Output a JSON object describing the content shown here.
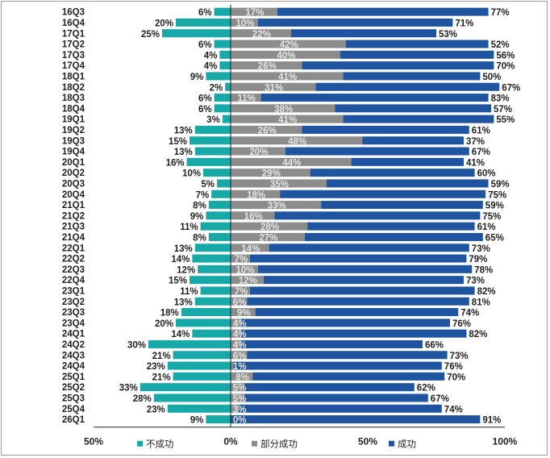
{
  "chart_data": {
    "type": "bar",
    "orientation": "horizontal",
    "stacking": "diverging",
    "categories": [
      "16Q3",
      "16Q4",
      "17Q1",
      "17Q2",
      "17Q3",
      "17Q4",
      "18Q1",
      "18Q2",
      "18Q3",
      "18Q4",
      "19Q1",
      "19Q2",
      "19Q3",
      "19Q4",
      "20Q1",
      "20Q2",
      "20Q3",
      "20Q4",
      "21Q1",
      "21Q2",
      "21Q3",
      "21Q4",
      "22Q1",
      "22Q2",
      "22Q3",
      "22Q4",
      "23Q1",
      "23Q2",
      "23Q3",
      "23Q4",
      "24Q1",
      "24Q2",
      "24Q3",
      "24Q4",
      "25Q1",
      "25Q2",
      "25Q3",
      "25Q4",
      "26Q1"
    ],
    "series": [
      {
        "name": "不成功",
        "color": "#17a8a8",
        "direction": "negative",
        "values": [
          6,
          20,
          25,
          6,
          4,
          4,
          9,
          2,
          6,
          6,
          3,
          13,
          15,
          13,
          16,
          10,
          5,
          7,
          8,
          9,
          11,
          8,
          13,
          14,
          12,
          15,
          11,
          13,
          18,
          20,
          14,
          30,
          21,
          23,
          21,
          33,
          28,
          23,
          9
        ]
      },
      {
        "name": "部分成功",
        "color": "#8c8c8c",
        "direction": "positive",
        "values": [
          17,
          10,
          22,
          42,
          40,
          26,
          41,
          31,
          11,
          38,
          41,
          26,
          48,
          20,
          44,
          29,
          35,
          18,
          33,
          16,
          28,
          27,
          14,
          7,
          10,
          12,
          7,
          6,
          9,
          4,
          4,
          4,
          6,
          1,
          8,
          5,
          5,
          3,
          0
        ]
      },
      {
        "name": "成功",
        "color": "#1f55a0",
        "direction": "positive",
        "values": [
          77,
          71,
          53,
          52,
          56,
          70,
          50,
          67,
          83,
          57,
          55,
          61,
          37,
          67,
          41,
          60,
          59,
          75,
          59,
          75,
          61,
          65,
          73,
          79,
          78,
          73,
          82,
          81,
          74,
          76,
          82,
          66,
          73,
          76,
          70,
          62,
          67,
          74,
          91
        ]
      }
    ],
    "xlim": [
      -50,
      100
    ],
    "xticks": [
      "50%",
      "0%",
      "50%",
      "100%"
    ],
    "xtick_values": [
      -50,
      0,
      50,
      100
    ],
    "legend": {
      "position": "bottom",
      "entries": [
        "不成功",
        "部分成功",
        "成功"
      ]
    }
  }
}
